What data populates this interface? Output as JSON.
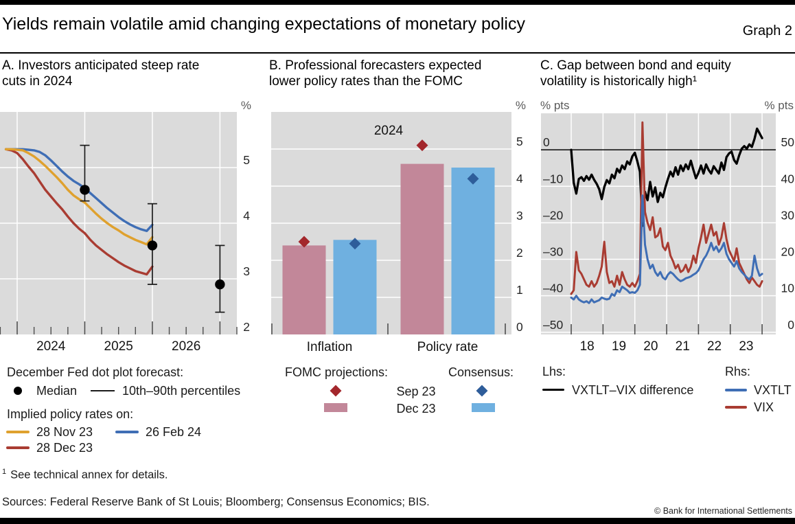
{
  "header": {
    "title": "Yields remain volatile amid changing expectations of monetary policy",
    "graph_label": "Graph 2"
  },
  "panels": {
    "a": {
      "title_lines": [
        "A. Investors anticipated steep rate",
        "cuts in 2024"
      ],
      "unit": "%"
    },
    "b": {
      "title_lines": [
        "B. Professional forecasters expected",
        "lower policy rates than the FOMC"
      ],
      "unit": "%"
    },
    "c": {
      "title_lines": [
        "C. Gap between bond and equity",
        "volatility is historically high¹"
      ],
      "unit_left": "% pts",
      "unit_right": "% pts"
    }
  },
  "legend_a": {
    "heading_dots": "December Fed dot plot forecast:",
    "median_label": "Median",
    "percentiles_label": "10th–90th percentiles",
    "heading_lines": "Implied policy rates on:",
    "line1_label": "28 Nov 23",
    "line2_label": "26 Feb 24",
    "line3_label": "28 Dec 23"
  },
  "legend_b": {
    "heading_left": "FOMC projections:",
    "heading_right": "Consensus:",
    "row1_label": "Sep 23",
    "row2_label": "Dec 23"
  },
  "legend_c": {
    "heading_left": "Lhs:",
    "heading_right": "Rhs:",
    "lhs_series_label": "VXTLT–VIX difference",
    "rhs_series1_label": "VXTLT",
    "rhs_series2_label": "VIX"
  },
  "footnote": {
    "marker": "1",
    "text": "See technical annex for details."
  },
  "sources": "Sources: Federal Reserve Bank of St Louis; Bloomberg; Consensus Economics; BIS.",
  "copyright": "© Bank for International Settlements",
  "colors": {
    "accent_orange": "#dfa12e",
    "accent_red": "#a93c32",
    "accent_blue": "#3f6eb5",
    "bar_pink": "#c28799",
    "bar_blue": "#6fb0e0",
    "diamond_red": "#a3272c",
    "diamond_blue": "#2e5d9a",
    "black_line": "#000000",
    "plot_bg": "#dbdbdb",
    "grid": "#ffffff",
    "tick": "#4d4d4d"
  },
  "chart_data": [
    {
      "panel": "A",
      "type": "line",
      "title": "Investors anticipated steep rate cuts in 2024",
      "ylabel": "%",
      "x_domain": [
        2023.746,
        2027.25
      ],
      "y_domain": [
        2,
        6
      ],
      "y_gridlines": [
        3,
        4,
        5
      ],
      "x_gridlines": [
        2024,
        2025,
        2026,
        2027
      ],
      "y_ticks": [
        {
          "v": 5,
          "label": "5"
        },
        {
          "v": 4,
          "label": "4"
        },
        {
          "v": 3,
          "label": "3"
        },
        {
          "v": 2,
          "label": "2"
        }
      ],
      "x_tick_years_major": [
        2024,
        2025,
        2026,
        2027
      ],
      "x_tick_minor_step": 0.25,
      "x_labels": [
        {
          "v": 2024.5,
          "label": "2024"
        },
        {
          "v": 2025.5,
          "label": "2025"
        },
        {
          "v": 2026.5,
          "label": "2026"
        }
      ],
      "series": [
        {
          "name": "26 Feb 24",
          "color": "accent_blue",
          "x0": 2023.8333,
          "dx": 0.083333,
          "values": [
            5.33,
            5.33,
            5.33,
            5.33,
            5.32,
            5.31,
            5.28,
            5.22,
            5.13,
            5.03,
            4.93,
            4.84,
            4.76,
            4.7,
            4.63,
            4.54,
            4.45,
            4.36,
            4.27,
            4.19,
            4.11,
            4.04,
            3.98,
            3.93,
            3.89,
            3.86,
            3.97
          ]
        },
        {
          "name": "28 Dec 23",
          "color": "accent_red",
          "x0": 2023.8333,
          "dx": 0.083333,
          "values": [
            5.33,
            5.31,
            5.26,
            5.15,
            5.02,
            4.9,
            4.75,
            4.6,
            4.48,
            4.36,
            4.25,
            4.12,
            4.0,
            3.9,
            3.82,
            3.7,
            3.6,
            3.52,
            3.44,
            3.37,
            3.3,
            3.24,
            3.19,
            3.14,
            3.11,
            3.08,
            3.22
          ]
        },
        {
          "name": "28 Nov 23",
          "color": "accent_orange",
          "x0": 2023.8333,
          "dx": 0.083333,
          "values": [
            5.33,
            5.33,
            5.32,
            5.31,
            5.26,
            5.2,
            5.12,
            5.03,
            4.93,
            4.83,
            4.72,
            4.6,
            4.5,
            4.43,
            4.37,
            4.27,
            4.17,
            4.08,
            4.0,
            3.93,
            3.87,
            3.8,
            3.75,
            3.7,
            3.66,
            3.62,
            3.75
          ]
        }
      ],
      "dot_plot": {
        "name": "December Fed dot plot forecast",
        "median_label": "Median",
        "band_label": "10th–90th percentiles",
        "points": [
          {
            "x": 2025.0,
            "median": 4.6,
            "p10": 4.4,
            "p90": 5.4
          },
          {
            "x": 2026.0,
            "median": 3.6,
            "p10": 2.9,
            "p90": 4.35
          },
          {
            "x": 2027.0,
            "median": 2.9,
            "p10": 2.4,
            "p90": 3.6
          }
        ]
      }
    },
    {
      "panel": "B",
      "type": "bar",
      "title": "Professional forecasters expected lower policy rates than the FOMC",
      "ylabel": "%",
      "annotation": "2024",
      "y_domain": [
        0,
        6
      ],
      "y_gridlines": [
        1,
        2,
        3,
        4,
        5
      ],
      "y_ticks": [
        {
          "v": 0,
          "label": "0"
        },
        {
          "v": 1,
          "label": "1"
        },
        {
          "v": 2,
          "label": "2"
        },
        {
          "v": 3,
          "label": "3"
        },
        {
          "v": 4,
          "label": "4"
        },
        {
          "v": 5,
          "label": "5"
        }
      ],
      "bar_series": [
        {
          "name": "FOMC projections Dec 23",
          "color": "bar_pink"
        },
        {
          "name": "Consensus Dec 23",
          "color": "bar_blue"
        }
      ],
      "diamond_series": [
        {
          "name": "FOMC projections Sep 23",
          "color": "diamond_red"
        },
        {
          "name": "Consensus Sep 23",
          "color": "diamond_blue"
        }
      ],
      "groups": [
        {
          "label": "Inflation",
          "bars": [
            2.4,
            2.55
          ],
          "diamonds": [
            2.5,
            2.45
          ]
        },
        {
          "label": "Policy rate",
          "bars": [
            4.6,
            4.5
          ],
          "diamonds": [
            5.1,
            4.2
          ]
        }
      ]
    },
    {
      "panel": "C",
      "type": "line",
      "title": "Gap between bond and equity volatility is historically high",
      "dual_axis": true,
      "ylabel_left": "% pts",
      "ylabel_right": "% pts",
      "x_domain": [
        2017.05,
        2024.43
      ],
      "lhs_domain": [
        -50.6,
        10
      ],
      "rhs_offset": 50,
      "zero_line": true,
      "y_gridlines_lhs": [
        0,
        -10,
        -20,
        -30,
        -40,
        -50
      ],
      "x_gridlines": [
        2018,
        2019,
        2020,
        2021,
        2022,
        2023,
        2024
      ],
      "y_ticks_left": [
        {
          "v": 0,
          "label": "0"
        },
        {
          "v": -10,
          "label": "–10"
        },
        {
          "v": -20,
          "label": "–20"
        },
        {
          "v": -30,
          "label": "–30"
        },
        {
          "v": -40,
          "label": "–40"
        },
        {
          "v": -50,
          "label": "–50"
        }
      ],
      "y_ticks_right": [
        {
          "v": 50,
          "label": "50"
        },
        {
          "v": 40,
          "label": "40"
        },
        {
          "v": 30,
          "label": "30"
        },
        {
          "v": 20,
          "label": "20"
        },
        {
          "v": 10,
          "label": "10"
        },
        {
          "v": 0,
          "label": "0"
        }
      ],
      "x_tick_years": [
        2018,
        2019,
        2020,
        2021,
        2022,
        2023,
        2024
      ],
      "x_labels": [
        {
          "v": 2018.5,
          "label": "18"
        },
        {
          "v": 2019.5,
          "label": "19"
        },
        {
          "v": 2020.5,
          "label": "20"
        },
        {
          "v": 2021.5,
          "label": "21"
        },
        {
          "v": 2022.5,
          "label": "22"
        },
        {
          "v": 2023.5,
          "label": "23"
        }
      ],
      "series": [
        {
          "name": "VXTLT–VIX difference",
          "axis": "lhs",
          "color": "black_line",
          "width": 3.3,
          "x0": 2018.0,
          "dx": 0.08,
          "values": [
            0,
            -9,
            -12,
            -8,
            -7.5,
            -8.5,
            -7.2,
            -8.2,
            -6.8,
            -8.2,
            -9.3,
            -10.8,
            -13.5,
            -10.2,
            -8.3,
            -9.2,
            -6.8,
            -7.8,
            -5.2,
            -6.2,
            -4.3,
            -5.3,
            -3.2,
            -4,
            -1.8,
            -0.8,
            -3.2,
            -6,
            -20.8,
            -11.5,
            -13.8,
            -8.8,
            -12.8,
            -10.3,
            -14.3,
            -11.8,
            -13,
            -10.3,
            -8,
            -6,
            -7.3,
            -4.8,
            -6.8,
            -4.3,
            -5.8,
            -4,
            -5.3,
            -3,
            -5.5,
            -7.8,
            -6.3,
            -4.3,
            -6.5,
            -4,
            -5.5,
            -6.5,
            -4.5,
            -5.5,
            -6.5,
            -3.5,
            -5.5,
            -2,
            -1,
            -0.5,
            -2.8,
            -3.8,
            -1.5,
            0.3,
            1,
            0.3,
            1.5,
            0.8,
            3,
            5.8,
            4.5,
            3.2
          ]
        },
        {
          "name": "VIX",
          "axis": "rhs",
          "color": "accent_red",
          "width": 3,
          "x0": 2018.0,
          "dx": 0.08,
          "values": [
            10.5,
            11.5,
            22,
            17,
            16,
            14.5,
            13,
            12.5,
            14,
            12.5,
            13.5,
            15.5,
            18,
            24.8,
            16.5,
            13.5,
            14,
            12.5,
            15.5,
            13,
            16.5,
            14.5,
            13,
            12.5,
            13.5,
            12.5,
            14,
            16,
            57.5,
            33,
            30,
            28,
            31.5,
            26,
            26.5,
            28.5,
            23.5,
            22.5,
            24.5,
            21,
            19.5,
            17.5,
            18.5,
            16.5,
            17,
            18.5,
            16.5,
            18,
            21,
            19,
            23,
            26,
            29.5,
            24.5,
            27,
            29.5,
            26.5,
            27.5,
            24,
            26,
            29.9,
            25.5,
            22.5,
            21,
            19.5,
            23,
            19,
            17.5,
            16,
            14.5,
            13.5,
            15,
            14,
            13,
            12.5,
            14
          ]
        },
        {
          "name": "VXTLT",
          "axis": "rhs",
          "color": "accent_blue",
          "width": 3,
          "x0": 2018.0,
          "dx": 0.08,
          "values": [
            9.5,
            9,
            10,
            9,
            8.5,
            8.2,
            8.5,
            8,
            9,
            8.2,
            8.5,
            8.8,
            9.5,
            9.2,
            9,
            9.2,
            10.5,
            10,
            11.5,
            11,
            12.5,
            12,
            11.5,
            10.8,
            11,
            10.8,
            11.5,
            13,
            37.5,
            24,
            20,
            17.5,
            18.5,
            16.5,
            15.5,
            16.5,
            15,
            14.5,
            15.8,
            16.5,
            16,
            15.2,
            14.5,
            14,
            14.3,
            14.8,
            15,
            15.3,
            15.8,
            16.2,
            17,
            18.5,
            20,
            21,
            22.5,
            24.5,
            22.5,
            23.5,
            22,
            23,
            24.5,
            21.5,
            20,
            19,
            18,
            19.5,
            17.5,
            16.5,
            15.8,
            15,
            14.5,
            15.5,
            21,
            17.5,
            15.5,
            16
          ]
        }
      ]
    }
  ]
}
